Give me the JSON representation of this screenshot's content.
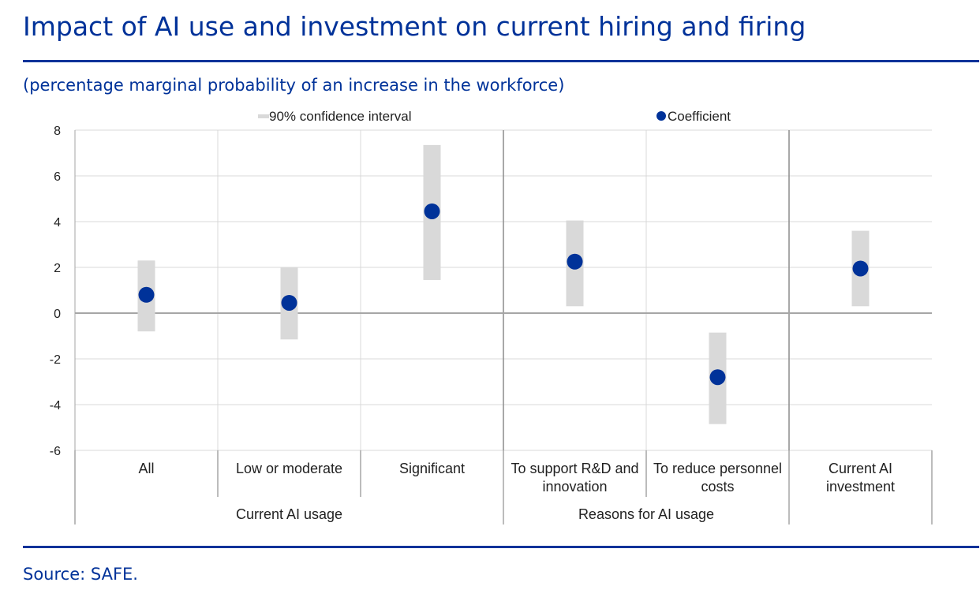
{
  "header": {
    "title": "Impact of AI use and investment on current hiring and firing",
    "subtitle": "(percentage marginal probability of an increase in the workforce)"
  },
  "footer": {
    "source": "Source: SAFE."
  },
  "colors": {
    "brand": "#003299",
    "ci": "#d9d9d9",
    "coefficient": "#003299",
    "grid": "#d9d9d9",
    "axis": "#a6a6a6"
  },
  "chart_data": {
    "type": "scatter",
    "title": "Impact of AI use and investment on current hiring and firing",
    "ylabel": "percentage marginal probability of an increase in the workforce",
    "ylim": [
      -6,
      8
    ],
    "yticks": [
      8,
      6,
      4,
      2,
      0,
      -2,
      -4,
      -6
    ],
    "grid": true,
    "legend": {
      "position": "top",
      "ci_label": "90% confidence interval",
      "coef_label": "Coefficient"
    },
    "categories": [
      {
        "label_lines": [
          "All"
        ],
        "group": "Current AI usage",
        "coefficient": 0.8,
        "ci_low": -0.8,
        "ci_high": 2.3
      },
      {
        "label_lines": [
          "Low or moderate"
        ],
        "group": "Current AI usage",
        "coefficient": 0.45,
        "ci_low": -1.15,
        "ci_high": 2.0
      },
      {
        "label_lines": [
          "Significant"
        ],
        "group": "Current AI usage",
        "coefficient": 4.45,
        "ci_low": 1.45,
        "ci_high": 7.35
      },
      {
        "label_lines": [
          "To support R&D and",
          "innovation"
        ],
        "group": "Reasons for AI usage",
        "coefficient": 2.25,
        "ci_low": 0.3,
        "ci_high": 4.05
      },
      {
        "label_lines": [
          "To reduce personnel",
          "costs"
        ],
        "group": "Reasons for AI usage",
        "coefficient": -2.8,
        "ci_low": -4.85,
        "ci_high": -0.85
      },
      {
        "label_lines": [
          "Current AI",
          "investment"
        ],
        "group": "",
        "coefficient": 1.95,
        "ci_low": 0.3,
        "ci_high": 3.6
      }
    ],
    "groups": [
      {
        "label": "Current AI usage",
        "span": [
          0,
          2
        ]
      },
      {
        "label": "Reasons for AI usage",
        "span": [
          3,
          4
        ]
      }
    ]
  }
}
